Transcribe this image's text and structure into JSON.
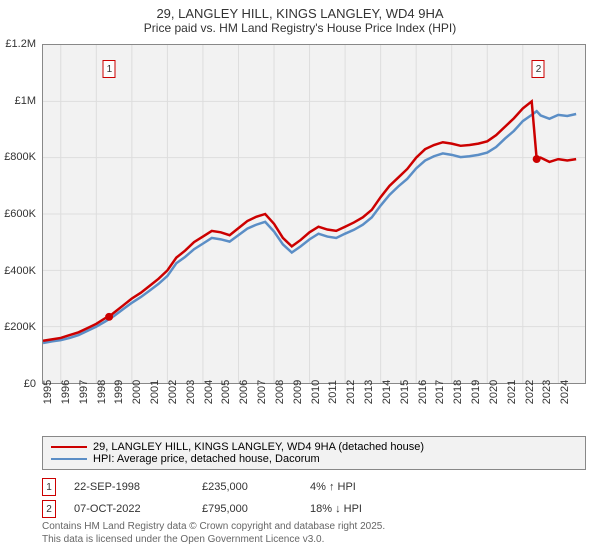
{
  "title": "29, LANGLEY HILL, KINGS LANGLEY, WD4 9HA",
  "subtitle": "Price paid vs. HM Land Registry's House Price Index (HPI)",
  "chart": {
    "type": "line",
    "background_color": "#f2f2f2",
    "border_color": "#888888",
    "grid_color": "#dddddd",
    "ylim": [
      0,
      1200000
    ],
    "ytick_step": 200000,
    "y_labels": [
      "£0",
      "£200K",
      "£400K",
      "£600K",
      "£800K",
      "£1M",
      "£1.2M"
    ],
    "xlim": [
      1995,
      2025.5
    ],
    "x_labels": [
      "1995",
      "1996",
      "1997",
      "1998",
      "1999",
      "2000",
      "2001",
      "2002",
      "2003",
      "2004",
      "2005",
      "2006",
      "2007",
      "2008",
      "2009",
      "2010",
      "2011",
      "2012",
      "2013",
      "2014",
      "2015",
      "2016",
      "2017",
      "2018",
      "2019",
      "2020",
      "2021",
      "2022",
      "2023",
      "2024"
    ],
    "label_fontsize": 11,
    "series": [
      {
        "name": "29, LANGLEY HILL, KINGS LANGLEY, WD4 9HA (detached house)",
        "color": "#cc0000",
        "line_width": 2.5,
        "data": [
          [
            1995.0,
            150000
          ],
          [
            1995.5,
            155000
          ],
          [
            1996.0,
            160000
          ],
          [
            1996.5,
            170000
          ],
          [
            1997.0,
            180000
          ],
          [
            1997.5,
            195000
          ],
          [
            1998.0,
            210000
          ],
          [
            1998.5,
            230000
          ],
          [
            1998.7,
            235000
          ],
          [
            1999.0,
            250000
          ],
          [
            1999.5,
            275000
          ],
          [
            2000.0,
            300000
          ],
          [
            2000.5,
            320000
          ],
          [
            2001.0,
            345000
          ],
          [
            2001.5,
            370000
          ],
          [
            2002.0,
            400000
          ],
          [
            2002.5,
            445000
          ],
          [
            2003.0,
            470000
          ],
          [
            2003.5,
            500000
          ],
          [
            2004.0,
            520000
          ],
          [
            2004.5,
            540000
          ],
          [
            2005.0,
            535000
          ],
          [
            2005.5,
            525000
          ],
          [
            2006.0,
            550000
          ],
          [
            2006.5,
            575000
          ],
          [
            2007.0,
            590000
          ],
          [
            2007.5,
            600000
          ],
          [
            2008.0,
            565000
          ],
          [
            2008.5,
            515000
          ],
          [
            2009.0,
            485000
          ],
          [
            2009.5,
            508000
          ],
          [
            2010.0,
            535000
          ],
          [
            2010.5,
            555000
          ],
          [
            2011.0,
            545000
          ],
          [
            2011.5,
            540000
          ],
          [
            2012.0,
            555000
          ],
          [
            2012.5,
            570000
          ],
          [
            2013.0,
            588000
          ],
          [
            2013.5,
            615000
          ],
          [
            2014.0,
            660000
          ],
          [
            2014.5,
            700000
          ],
          [
            2015.0,
            730000
          ],
          [
            2015.5,
            760000
          ],
          [
            2016.0,
            800000
          ],
          [
            2016.5,
            830000
          ],
          [
            2017.0,
            845000
          ],
          [
            2017.5,
            855000
          ],
          [
            2018.0,
            850000
          ],
          [
            2018.5,
            842000
          ],
          [
            2019.0,
            845000
          ],
          [
            2019.5,
            850000
          ],
          [
            2020.0,
            858000
          ],
          [
            2020.5,
            880000
          ],
          [
            2021.0,
            910000
          ],
          [
            2021.5,
            940000
          ],
          [
            2022.0,
            975000
          ],
          [
            2022.5,
            1000000
          ],
          [
            2022.78,
            795000
          ],
          [
            2023.0,
            800000
          ],
          [
            2023.5,
            785000
          ],
          [
            2024.0,
            795000
          ],
          [
            2024.5,
            790000
          ],
          [
            2025.0,
            795000
          ]
        ]
      },
      {
        "name": "HPI: Average price, detached house, Dacorum",
        "color": "#5b8ec6",
        "line_width": 2.5,
        "data": [
          [
            1995.0,
            142000
          ],
          [
            1995.5,
            148000
          ],
          [
            1996.0,
            152000
          ],
          [
            1996.5,
            160000
          ],
          [
            1997.0,
            170000
          ],
          [
            1997.5,
            185000
          ],
          [
            1998.0,
            200000
          ],
          [
            1998.5,
            218000
          ],
          [
            1999.0,
            238000
          ],
          [
            1999.5,
            262000
          ],
          [
            2000.0,
            285000
          ],
          [
            2000.5,
            305000
          ],
          [
            2001.0,
            328000
          ],
          [
            2001.5,
            352000
          ],
          [
            2002.0,
            380000
          ],
          [
            2002.5,
            425000
          ],
          [
            2003.0,
            448000
          ],
          [
            2003.5,
            475000
          ],
          [
            2004.0,
            495000
          ],
          [
            2004.5,
            515000
          ],
          [
            2005.0,
            510000
          ],
          [
            2005.5,
            502000
          ],
          [
            2006.0,
            525000
          ],
          [
            2006.5,
            548000
          ],
          [
            2007.0,
            562000
          ],
          [
            2007.5,
            572000
          ],
          [
            2008.0,
            538000
          ],
          [
            2008.5,
            492000
          ],
          [
            2009.0,
            463000
          ],
          [
            2009.5,
            485000
          ],
          [
            2010.0,
            510000
          ],
          [
            2010.5,
            530000
          ],
          [
            2011.0,
            520000
          ],
          [
            2011.5,
            515000
          ],
          [
            2012.0,
            530000
          ],
          [
            2012.5,
            544000
          ],
          [
            2013.0,
            562000
          ],
          [
            2013.5,
            588000
          ],
          [
            2014.0,
            630000
          ],
          [
            2014.5,
            668000
          ],
          [
            2015.0,
            698000
          ],
          [
            2015.5,
            725000
          ],
          [
            2016.0,
            762000
          ],
          [
            2016.5,
            790000
          ],
          [
            2017.0,
            805000
          ],
          [
            2017.5,
            815000
          ],
          [
            2018.0,
            810000
          ],
          [
            2018.5,
            802000
          ],
          [
            2019.0,
            805000
          ],
          [
            2019.5,
            810000
          ],
          [
            2020.0,
            818000
          ],
          [
            2020.5,
            838000
          ],
          [
            2021.0,
            868000
          ],
          [
            2021.5,
            895000
          ],
          [
            2022.0,
            930000
          ],
          [
            2022.5,
            952000
          ],
          [
            2022.78,
            965000
          ],
          [
            2023.0,
            950000
          ],
          [
            2023.5,
            938000
          ],
          [
            2024.0,
            952000
          ],
          [
            2024.5,
            948000
          ],
          [
            2025.0,
            955000
          ]
        ]
      }
    ],
    "markers": [
      {
        "id": "1",
        "x": 1998.72,
        "y_top": 15,
        "color": "#cc0000",
        "point_y": 235000
      },
      {
        "id": "2",
        "x": 2022.78,
        "y_top": 15,
        "color": "#cc0000",
        "point_y": 795000
      }
    ]
  },
  "legend": {
    "items": [
      {
        "color": "#cc0000",
        "label": "29, LANGLEY HILL, KINGS LANGLEY, WD4 9HA (detached house)"
      },
      {
        "color": "#5b8ec6",
        "label": "HPI: Average price, detached house, Dacorum"
      }
    ]
  },
  "transactions": [
    {
      "id": "1",
      "color": "#cc0000",
      "date": "22-SEP-1998",
      "price": "£235,000",
      "pct": "4% ↑ HPI"
    },
    {
      "id": "2",
      "color": "#cc0000",
      "date": "07-OCT-2022",
      "price": "£795,000",
      "pct": "18% ↓ HPI"
    }
  ],
  "footer": {
    "line1": "Contains HM Land Registry data © Crown copyright and database right 2025.",
    "line2": "This data is licensed under the Open Government Licence v3.0."
  }
}
